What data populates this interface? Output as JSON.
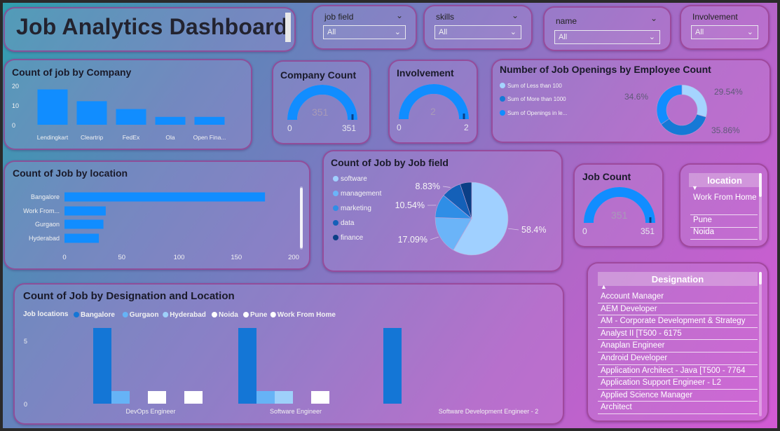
{
  "dashboard": {
    "title": "Job Analytics Dashboard"
  },
  "slicers": [
    {
      "label": "job field",
      "value": "All"
    },
    {
      "label": "skills",
      "value": "All"
    },
    {
      "label": "name",
      "value": "All"
    },
    {
      "label": "Involvement",
      "value": "All"
    }
  ],
  "company_chart": {
    "title": "Count of job by Company",
    "chart_data": {
      "type": "bar",
      "categories": [
        "Lendingkart",
        "Cleartrip",
        "FedEx",
        "Ola",
        "Open Fina..."
      ],
      "values": [
        18,
        12,
        8,
        4,
        4
      ],
      "ylim": [
        0,
        20
      ],
      "yticks": [
        "0",
        "10",
        "20"
      ],
      "color": "#118dff"
    }
  },
  "company_count": {
    "title": "Company Count",
    "value": "351",
    "min": "0",
    "max": "351",
    "fraction": 1.0
  },
  "involvement": {
    "title": "Involvement",
    "value": "2",
    "min": "0",
    "max": "2",
    "fraction": 1.0
  },
  "job_count": {
    "title": "Job Count",
    "value": "351",
    "min": "0",
    "max": "351",
    "fraction": 1.0
  },
  "openings": {
    "title": "Number of Job Openings by Employee Count",
    "legend": [
      "Sum of Less than 100",
      "Sum of More than 1000",
      "Sum of Openings in le..."
    ],
    "chart_data": {
      "type": "pie",
      "labels": [
        "29.54%",
        "35.86%",
        "34.6%"
      ],
      "values": [
        29.54,
        35.86,
        34.6
      ],
      "colors": [
        "#a5d4ff",
        "#1679d6",
        "#118dff"
      ]
    }
  },
  "location_chart": {
    "title": "Count of Job by location",
    "chart_data": {
      "type": "bar",
      "categories": [
        "Bangalore",
        "Work From...",
        "Gurgaon",
        "Hyderabad"
      ],
      "values": [
        175,
        36,
        34,
        30
      ],
      "xlim": [
        0,
        200
      ],
      "xticks": [
        "0",
        "50",
        "100",
        "150",
        "200"
      ],
      "color": "#118dff"
    }
  },
  "jobfield_chart": {
    "title": "Count of Job by Job field",
    "legend": [
      "software",
      "management",
      "marketing",
      "data",
      "finance"
    ],
    "chart_data": {
      "type": "pie",
      "labels": [
        "58.4%",
        "17.09%",
        "10.54%",
        "8.83%",
        ""
      ],
      "values": [
        58.4,
        17.09,
        10.54,
        8.83,
        5.14
      ],
      "colors": [
        "#a0d0ff",
        "#6bb4f8",
        "#2f8ee6",
        "#1460b8",
        "#0b3f86"
      ]
    }
  },
  "location_slicer": {
    "header": "location",
    "items": [
      "Work From Home",
      "Pune",
      "Noida"
    ]
  },
  "designation_slicer": {
    "header": "Designation",
    "items": [
      "Account Manager",
      "AEM Developer",
      "AM - Corporate Development & Strategy",
      "Analyst II [T500 - 6175",
      "Anaplan Engineer",
      "Android Developer",
      "Application Architect - Java [T500 - 7764",
      "Application Support Engineer - L2",
      "Applied Science Manager",
      "Architect"
    ]
  },
  "designation_chart": {
    "title": "Count of Job by Designation and Location",
    "legend_title": "Job locations",
    "chart_data": {
      "type": "bar",
      "categories": [
        "DevOps Engineer",
        "Software Engineer",
        "Software Development Engineer - 2"
      ],
      "series": [
        {
          "name": "Bangalore",
          "color": "#1476d6",
          "values": [
            6,
            6,
            6
          ]
        },
        {
          "name": "Gurgaon",
          "color": "#66b3f6",
          "values": [
            1,
            1,
            0
          ]
        },
        {
          "name": "Hyderabad",
          "color": "#9ed0fa",
          "values": [
            0,
            1,
            0
          ]
        },
        {
          "name": "Noida",
          "color": "#ffffff",
          "values": [
            1,
            0,
            0
          ]
        },
        {
          "name": "Pune",
          "color": "#ffffff",
          "values": [
            0,
            1,
            0
          ]
        },
        {
          "name": "Work From Home",
          "color": "#ffffff",
          "values": [
            1,
            0,
            0
          ]
        }
      ],
      "ylim": [
        0,
        6
      ],
      "yticks": [
        "0",
        "5"
      ]
    }
  }
}
